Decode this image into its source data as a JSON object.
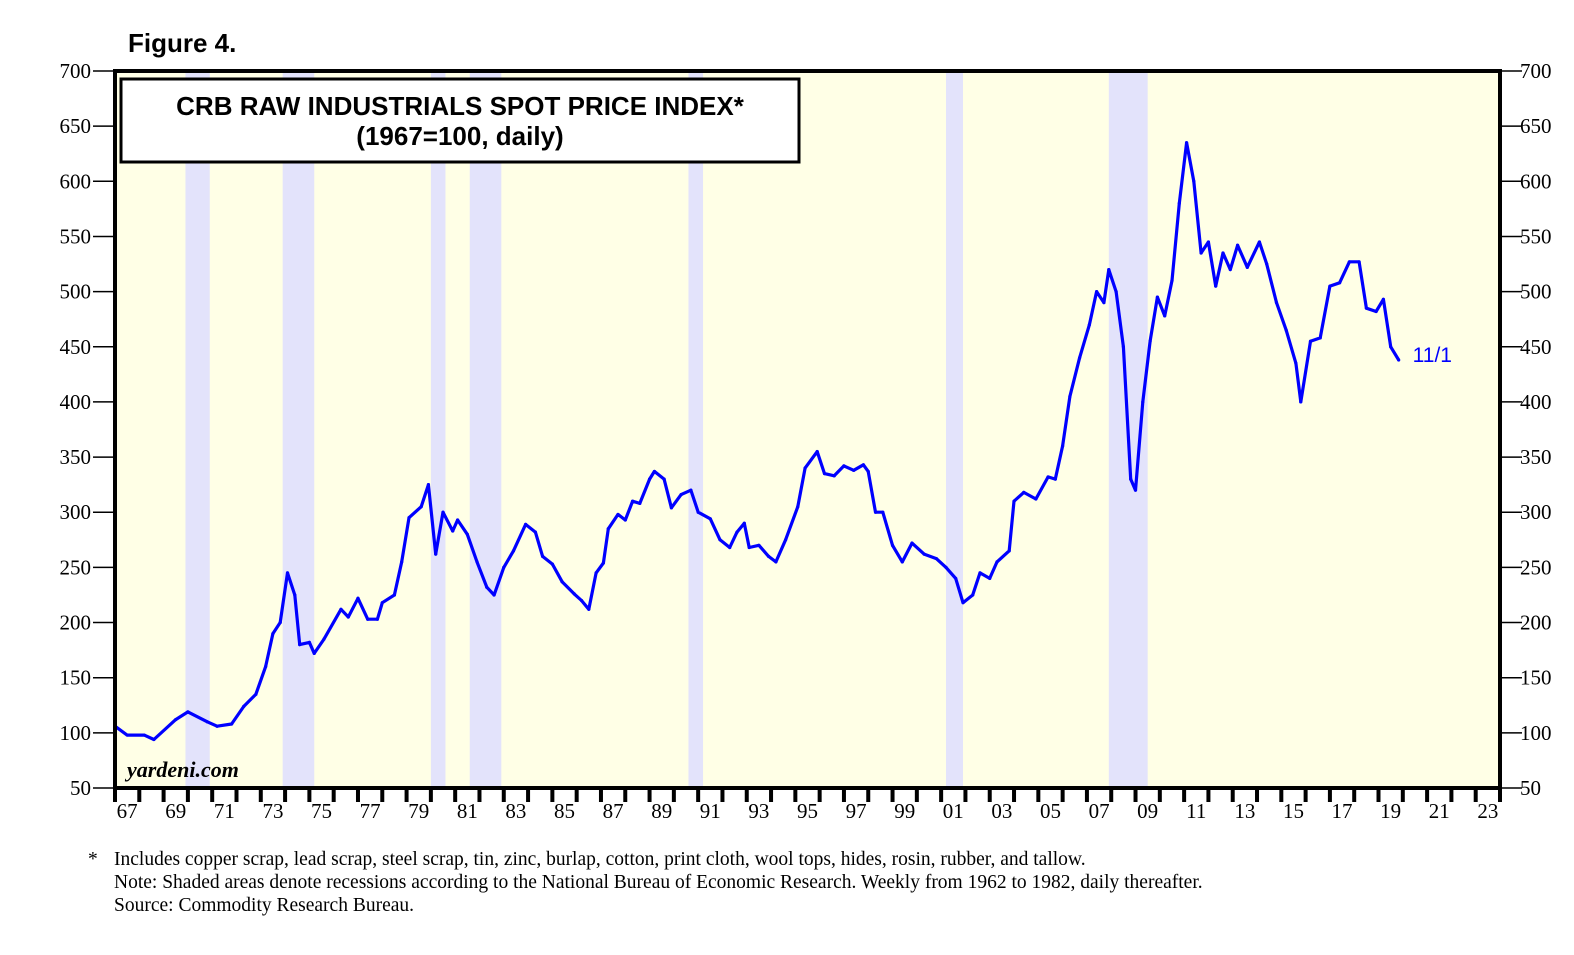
{
  "figure_label": "Figure 4.",
  "watermark": "yardeni.com",
  "colors": {
    "plot_bg": "#ffffe6",
    "recession": "#e3e3fb",
    "line": "#0000ff",
    "axis": "#000000"
  },
  "footnotes": {
    "marker": "*",
    "lines": [
      "Includes copper scrap, lead scrap, steel scrap, tin, zinc, burlap, cotton, print cloth, wool tops, hides, rosin, rubber, and tallow.",
      "Note: Shaded areas denote recessions according to the National Bureau of Economic Research. Weekly from 1962 to 1982, daily thereafter.",
      "Source: Commodity Research Bureau."
    ]
  },
  "chart_data": {
    "type": "line",
    "title": "CRB RAW INDUSTRIALS SPOT PRICE INDEX*",
    "subtitle": "(1967=100, daily)",
    "xlabel": "",
    "ylabel": "",
    "xlim": [
      1967,
      2024
    ],
    "ylim": [
      50,
      700
    ],
    "y_ticks": [
      50,
      100,
      150,
      200,
      250,
      300,
      350,
      400,
      450,
      500,
      550,
      600,
      650,
      700
    ],
    "y_ticks_right": [
      50,
      100,
      150,
      200,
      250,
      300,
      350,
      400,
      450,
      500,
      550,
      600,
      650,
      700
    ],
    "x_tick_labels": [
      "67",
      "69",
      "71",
      "73",
      "75",
      "77",
      "79",
      "81",
      "83",
      "85",
      "87",
      "89",
      "91",
      "93",
      "95",
      "97",
      "99",
      "01",
      "03",
      "05",
      "07",
      "09",
      "11",
      "13",
      "15",
      "17",
      "19",
      "21",
      "23"
    ],
    "x_tick_label_years": [
      1967,
      1969,
      1971,
      1973,
      1975,
      1977,
      1979,
      1981,
      1983,
      1985,
      1987,
      1989,
      1991,
      1993,
      1995,
      1997,
      1999,
      2001,
      2003,
      2005,
      2007,
      2009,
      2011,
      2013,
      2015,
      2017,
      2019,
      2021,
      2023
    ],
    "grid": false,
    "legend": "none",
    "end_annotation": {
      "label": "11/1",
      "x": 2019.83,
      "y": 438
    },
    "recessions": [
      [
        1969.9,
        1970.9
      ],
      [
        1973.9,
        1975.2
      ],
      [
        1980.0,
        1980.6
      ],
      [
        1981.6,
        1982.9
      ],
      [
        1990.6,
        1991.2
      ],
      [
        2001.2,
        2001.9
      ],
      [
        2007.9,
        2009.5
      ]
    ],
    "series": [
      {
        "name": "CRB Raw Industrials Spot Price Index",
        "x": [
          1967.0,
          1967.5,
          1968.2,
          1968.6,
          1969.5,
          1970.0,
          1970.8,
          1971.2,
          1971.8,
          1972.3,
          1972.8,
          1973.2,
          1973.5,
          1973.8,
          1974.1,
          1974.4,
          1974.6,
          1975.0,
          1975.2,
          1975.6,
          1976.3,
          1976.6,
          1977.0,
          1977.4,
          1977.8,
          1978.0,
          1978.5,
          1978.8,
          1979.1,
          1979.6,
          1979.9,
          1980.2,
          1980.5,
          1980.9,
          1981.1,
          1981.5,
          1981.9,
          1982.3,
          1982.6,
          1983.0,
          1983.4,
          1983.9,
          1984.3,
          1984.6,
          1985.0,
          1985.4,
          1985.9,
          1986.2,
          1986.5,
          1986.8,
          1987.1,
          1987.3,
          1987.7,
          1988.0,
          1988.3,
          1988.6,
          1989.0,
          1989.2,
          1989.6,
          1989.9,
          1990.3,
          1990.7,
          1991.0,
          1991.5,
          1991.9,
          1992.3,
          1992.6,
          1992.9,
          1993.1,
          1993.5,
          1993.9,
          1994.2,
          1994.6,
          1995.1,
          1995.4,
          1995.9,
          1996.2,
          1996.6,
          1997.0,
          1997.4,
          1997.8,
          1998.0,
          1998.3,
          1998.6,
          1999.0,
          1999.4,
          1999.8,
          2000.3,
          2000.8,
          2001.2,
          2001.6,
          2001.9,
          2002.3,
          2002.6,
          2003.0,
          2003.3,
          2003.8,
          2004.0,
          2004.4,
          2004.9,
          2005.4,
          2005.7,
          2006.0,
          2006.3,
          2006.7,
          2007.1,
          2007.4,
          2007.7,
          2007.9,
          2008.2,
          2008.5,
          2008.8,
          2009.0,
          2009.3,
          2009.6,
          2009.9,
          2010.2,
          2010.5,
          2010.8,
          2011.1,
          2011.4,
          2011.7,
          2012.0,
          2012.3,
          2012.6,
          2012.9,
          2013.2,
          2013.6,
          2014.1,
          2014.4,
          2014.8,
          2015.2,
          2015.6,
          2015.8,
          2016.2,
          2016.6,
          2017.0,
          2017.4,
          2017.8,
          2018.2,
          2018.5,
          2018.9,
          2019.2,
          2019.5,
          2019.83
        ],
        "values": [
          106,
          98,
          98,
          94,
          112,
          119,
          110,
          106,
          108,
          124,
          135,
          160,
          190,
          200,
          245,
          225,
          180,
          182,
          172,
          185,
          212,
          205,
          222,
          203,
          203,
          218,
          225,
          255,
          295,
          305,
          325,
          262,
          300,
          283,
          293,
          280,
          255,
          232,
          225,
          250,
          265,
          289,
          282,
          260,
          253,
          237,
          226,
          220,
          212,
          245,
          254,
          285,
          298,
          293,
          310,
          308,
          330,
          337,
          330,
          304,
          316,
          320,
          300,
          294,
          275,
          268,
          282,
          290,
          268,
          270,
          260,
          255,
          275,
          305,
          340,
          355,
          335,
          333,
          342,
          338,
          343,
          337,
          300,
          300,
          270,
          255,
          272,
          262,
          258,
          250,
          240,
          218,
          225,
          245,
          240,
          255,
          265,
          310,
          318,
          312,
          332,
          330,
          360,
          405,
          440,
          470,
          500,
          490,
          520,
          500,
          450,
          330,
          320,
          400,
          455,
          495,
          478,
          510,
          580,
          635,
          600,
          535,
          545,
          505,
          535,
          520,
          542,
          522,
          545,
          525,
          490,
          465,
          435,
          400,
          455,
          458,
          505,
          508,
          527,
          527,
          485,
          482,
          493,
          450,
          438
        ]
      }
    ]
  }
}
